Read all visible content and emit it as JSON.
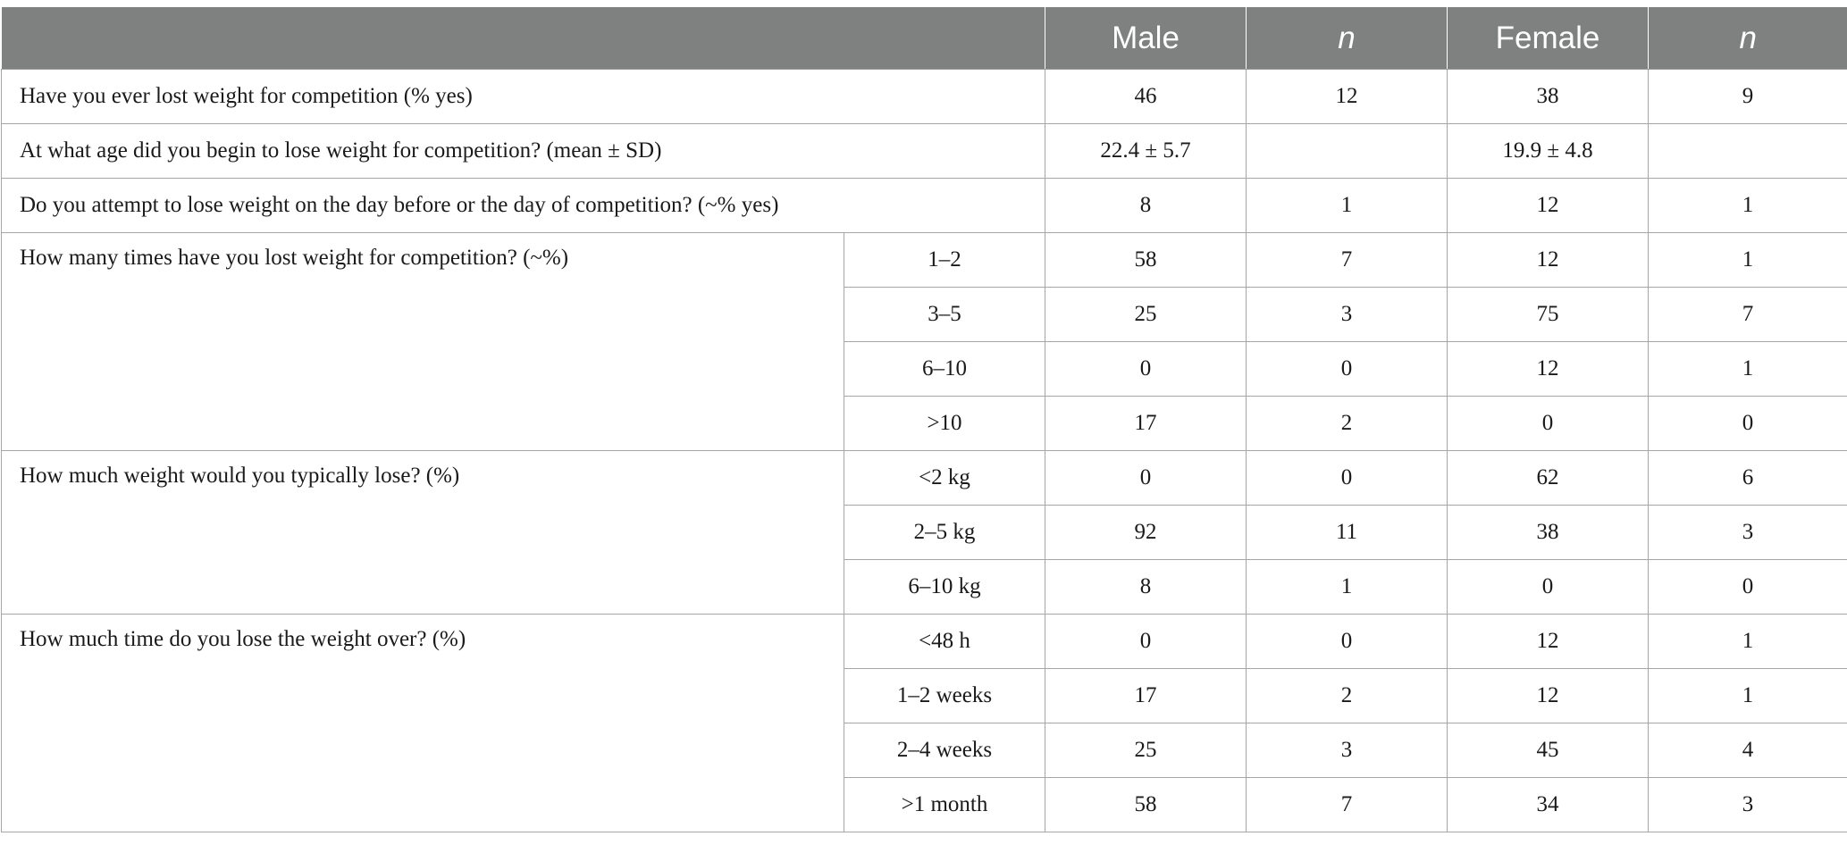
{
  "header": {
    "blank": "",
    "male": "Male",
    "male_n": "n",
    "female": "Female",
    "female_n": "n"
  },
  "rows": [
    {
      "question": "Have you ever lost weight for competition (% yes)",
      "male": "46",
      "male_n": "12",
      "female": "38",
      "female_n": "9"
    },
    {
      "question": "At what age did you begin to lose weight for competition? (mean ± SD)",
      "male": "22.4 ± 5.7",
      "male_n": "",
      "female": "19.9 ± 4.8",
      "female_n": ""
    },
    {
      "question": "Do you attempt to lose weight on the day before or the day of competition? (~% yes)",
      "male": "8",
      "male_n": "1",
      "female": "12",
      "female_n": "1"
    }
  ],
  "groups": [
    {
      "question": "How many times have you lost weight for competition? (~%)",
      "rows": [
        {
          "option": "1–2",
          "male": "58",
          "male_n": "7",
          "female": "12",
          "female_n": "1"
        },
        {
          "option": "3–5",
          "male": "25",
          "male_n": "3",
          "female": "75",
          "female_n": "7"
        },
        {
          "option": "6–10",
          "male": "0",
          "male_n": "0",
          "female": "12",
          "female_n": "1"
        },
        {
          "option": ">10",
          "male": "17",
          "male_n": "2",
          "female": "0",
          "female_n": "0"
        }
      ]
    },
    {
      "question": "How much weight would you typically lose? (%)",
      "rows": [
        {
          "option": "<2 kg",
          "male": "0",
          "male_n": "0",
          "female": "62",
          "female_n": "6"
        },
        {
          "option": "2–5 kg",
          "male": "92",
          "male_n": "11",
          "female": "38",
          "female_n": "3"
        },
        {
          "option": "6–10 kg",
          "male": "8",
          "male_n": "1",
          "female": "0",
          "female_n": "0"
        }
      ]
    },
    {
      "question": "How much time do you lose the weight over? (%)",
      "rows": [
        {
          "option": "<48 h",
          "male": "0",
          "male_n": "0",
          "female": "12",
          "female_n": "1"
        },
        {
          "option": "1–2 weeks",
          "male": "17",
          "male_n": "2",
          "female": "12",
          "female_n": "1"
        },
        {
          "option": "2–4 weeks",
          "male": "25",
          "male_n": "3",
          "female": "45",
          "female_n": "4"
        },
        {
          "option": ">1 month",
          "male": "58",
          "male_n": "7",
          "female": "34",
          "female_n": "3"
        }
      ]
    }
  ]
}
